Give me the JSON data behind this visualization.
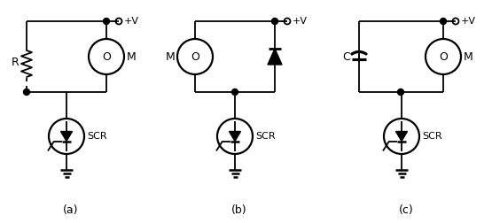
{
  "background_color": "#ffffff",
  "line_color": "#000000",
  "line_width": 1.3,
  "fig_width": 5.55,
  "fig_height": 2.52,
  "label_a": "(a)",
  "label_b": "(b)",
  "label_c": "(c)"
}
